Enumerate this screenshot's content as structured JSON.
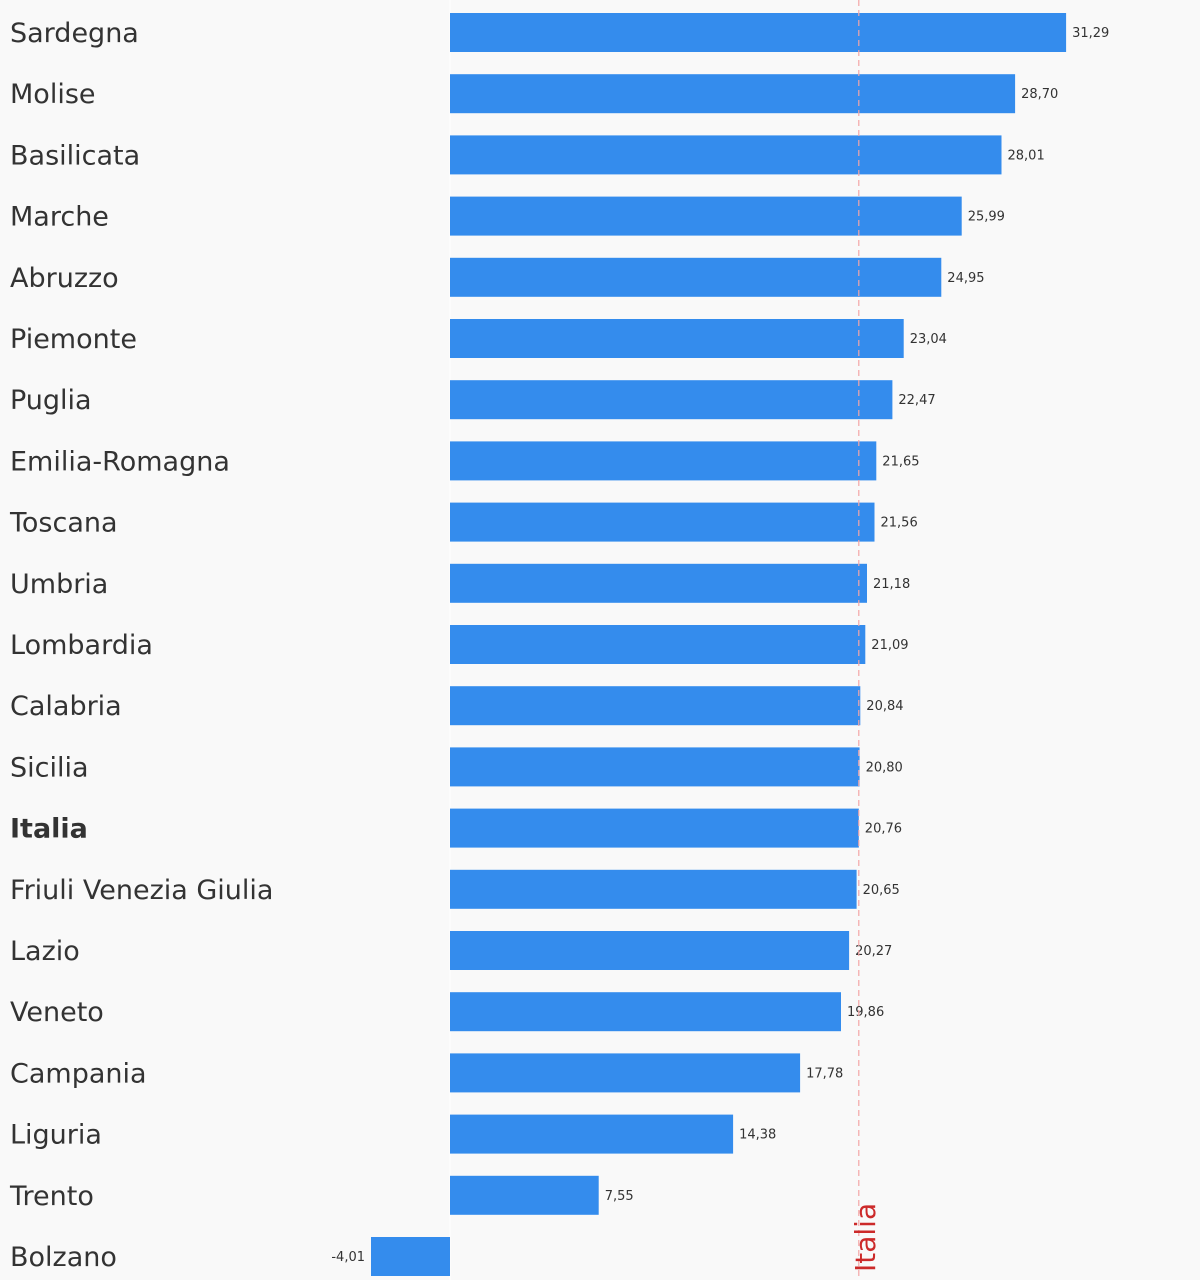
{
  "chart_data": {
    "type": "bar",
    "orientation": "horizontal",
    "categories": [
      "Sardegna",
      "Molise",
      "Basilicata",
      "Marche",
      "Abruzzo",
      "Piemonte",
      "Puglia",
      "Emilia-Romagna",
      "Toscana",
      "Umbria",
      "Lombardia",
      "Calabria",
      "Sicilia",
      "Italia",
      "Friuli Venezia Giulia",
      "Lazio",
      "Veneto",
      "Campania",
      "Liguria",
      "Trento",
      "Bolzano"
    ],
    "values": [
      31.29,
      28.7,
      28.01,
      25.99,
      24.95,
      23.04,
      22.47,
      21.65,
      21.56,
      21.18,
      21.09,
      20.84,
      20.8,
      20.76,
      20.65,
      20.27,
      19.86,
      17.78,
      14.38,
      7.55,
      -4.01
    ],
    "value_labels": [
      "31,29",
      "28,70",
      "28,01",
      "25,99",
      "24,95",
      "23,04",
      "22,47",
      "21,65",
      "21,56",
      "21,18",
      "21,09",
      "20,84",
      "20,80",
      "20,76",
      "20,65",
      "20,27",
      "19,86",
      "17,78",
      "14,38",
      "7,55",
      "-4,01"
    ],
    "highlight_category": "Italia",
    "reference_line": {
      "label": "Italia",
      "value": 20.76,
      "color": "#f4a6a6",
      "label_color": "#cc2a2a"
    },
    "xlim": [
      -4.01,
      31.29
    ],
    "bar_color": "#348ced",
    "title": "",
    "xlabel": "",
    "ylabel": "",
    "grid": false,
    "legend": "none"
  }
}
